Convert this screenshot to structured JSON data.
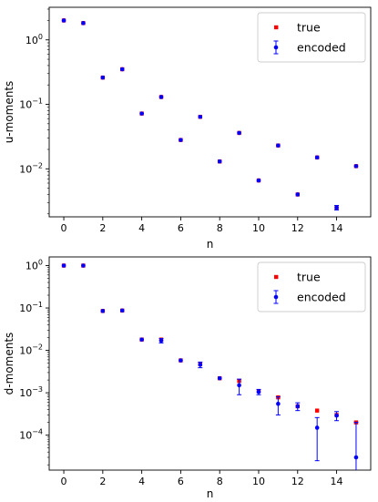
{
  "chart_data": [
    {
      "type": "scatter",
      "xlabel": "n",
      "ylabel": "u-moments",
      "yscale": "log",
      "xlim": [
        -0.75,
        15.75
      ],
      "ylim": [
        0.0018,
        3.2
      ],
      "xticks": [
        0,
        2,
        4,
        6,
        8,
        10,
        12,
        14
      ],
      "xtick_labels": [
        "0",
        "2",
        "4",
        "6",
        "8",
        "10",
        "12",
        "14"
      ],
      "yticks": [
        1,
        0.1,
        0.01
      ],
      "ytick_labels": [
        {
          "base": "10",
          "exp": "0"
        },
        {
          "base": "10",
          "exp": "−1"
        },
        {
          "base": "10",
          "exp": "−2"
        }
      ],
      "legend": {
        "position": "top-right",
        "entries": [
          "true",
          "encoded"
        ]
      },
      "colors": {
        "true": "#ff0000",
        "encoded": "#0000ff"
      },
      "series": [
        {
          "name": "true",
          "marker": "square",
          "x": [
            0,
            1,
            2,
            3,
            4,
            5,
            6,
            7,
            8,
            9,
            10,
            11,
            12,
            13,
            14,
            15
          ],
          "y": [
            2.0,
            1.82,
            0.26,
            0.35,
            0.072,
            0.13,
            0.028,
            0.064,
            0.013,
            0.036,
            0.0066,
            0.023,
            0.004,
            0.015,
            0.0025,
            0.011
          ]
        },
        {
          "name": "encoded",
          "marker": "circle",
          "x": [
            0,
            1,
            2,
            3,
            4,
            5,
            6,
            7,
            8,
            9,
            10,
            11,
            12,
            13,
            14,
            15
          ],
          "y": [
            2.0,
            1.82,
            0.26,
            0.35,
            0.072,
            0.13,
            0.028,
            0.064,
            0.013,
            0.036,
            0.0066,
            0.023,
            0.004,
            0.015,
            0.0025,
            0.011
          ],
          "err_low": [
            0,
            0,
            0,
            0,
            0,
            0,
            0,
            0,
            0,
            0,
            0,
            0,
            0,
            0,
            0.0002,
            0
          ],
          "err_high": [
            0,
            0,
            0,
            0,
            0,
            0,
            0,
            0,
            0,
            0,
            0,
            0,
            0,
            0,
            0.0002,
            0
          ]
        }
      ]
    },
    {
      "type": "scatter",
      "xlabel": "n",
      "ylabel": "d-moments",
      "yscale": "log",
      "xlim": [
        -0.75,
        15.75
      ],
      "ylim": [
        1.5e-05,
        1.6
      ],
      "xticks": [
        0,
        2,
        4,
        6,
        8,
        10,
        12,
        14
      ],
      "xtick_labels": [
        "0",
        "2",
        "4",
        "6",
        "8",
        "10",
        "12",
        "14"
      ],
      "yticks": [
        1,
        0.1,
        0.01,
        0.001,
        0.0001
      ],
      "ytick_labels": [
        {
          "base": "10",
          "exp": "0"
        },
        {
          "base": "10",
          "exp": "−1"
        },
        {
          "base": "10",
          "exp": "−2"
        },
        {
          "base": "10",
          "exp": "−3"
        },
        {
          "base": "10",
          "exp": "−4"
        }
      ],
      "legend": {
        "position": "top-right",
        "entries": [
          "true",
          "encoded"
        ]
      },
      "colors": {
        "true": "#ff0000",
        "encoded": "#0000ff"
      },
      "series": [
        {
          "name": "true",
          "marker": "square",
          "x": [
            0,
            1,
            2,
            3,
            4,
            5,
            6,
            7,
            8,
            9,
            10,
            11,
            12,
            13,
            14,
            15
          ],
          "y": [
            1.0,
            1.0,
            0.085,
            0.087,
            0.018,
            0.018,
            0.0058,
            0.0047,
            0.0022,
            0.0019,
            0.0011,
            0.00078,
            0.00048,
            0.00038,
            0.0003,
            0.0002
          ]
        },
        {
          "name": "encoded",
          "marker": "circle",
          "x": [
            0,
            1,
            2,
            3,
            4,
            5,
            6,
            7,
            8,
            9,
            10,
            11,
            12,
            13,
            14,
            15
          ],
          "y": [
            1.0,
            1.0,
            0.085,
            0.087,
            0.018,
            0.017,
            0.0058,
            0.0046,
            0.0022,
            0.0015,
            0.00105,
            0.00055,
            0.00048,
            0.00015,
            0.00029,
            3e-05
          ],
          "err_low": [
            0,
            0,
            0,
            0,
            0,
            0.002,
            0,
            0.0007,
            0,
            0.0006,
            0.00015,
            0.00025,
            0.0001,
            0.000125,
            7e-05,
            1.5e-05
          ],
          "err_high": [
            0,
            0,
            0,
            0,
            0,
            0.002,
            0,
            0.0007,
            0,
            0.0006,
            0.00015,
            0.00025,
            0.0001,
            0.00011,
            7e-05,
            0.00017
          ]
        }
      ]
    }
  ]
}
